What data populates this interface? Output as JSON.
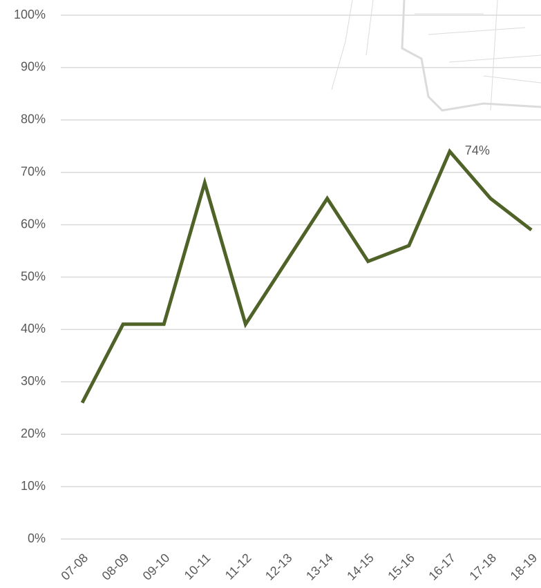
{
  "chart_data": {
    "type": "line",
    "categories": [
      "07-08",
      "08-09",
      "09-10",
      "10-11",
      "11-12",
      "12-13",
      "13-14",
      "14-15",
      "15-16",
      "16-17",
      "17-18",
      "18-19"
    ],
    "values": [
      26,
      41,
      41,
      68,
      41,
      53,
      65,
      53,
      56,
      74,
      65,
      59
    ],
    "value_labels": [
      null,
      null,
      null,
      null,
      null,
      null,
      null,
      null,
      null,
      "74%",
      null,
      null
    ],
    "color": "#4f6228",
    "ylim": [
      0,
      100
    ],
    "yticks": [
      {
        "value": 0,
        "label": "0%"
      },
      {
        "value": 10,
        "label": "10%"
      },
      {
        "value": 20,
        "label": "20%"
      },
      {
        "value": 30,
        "label": "30%"
      },
      {
        "value": 40,
        "label": "40%"
      },
      {
        "value": 50,
        "label": "50%"
      },
      {
        "value": 60,
        "label": "60%"
      },
      {
        "value": 70,
        "label": "70%"
      },
      {
        "value": 80,
        "label": "80%"
      },
      {
        "value": 90,
        "label": "90%"
      },
      {
        "value": 100,
        "label": "100%"
      }
    ],
    "grid": true
  }
}
